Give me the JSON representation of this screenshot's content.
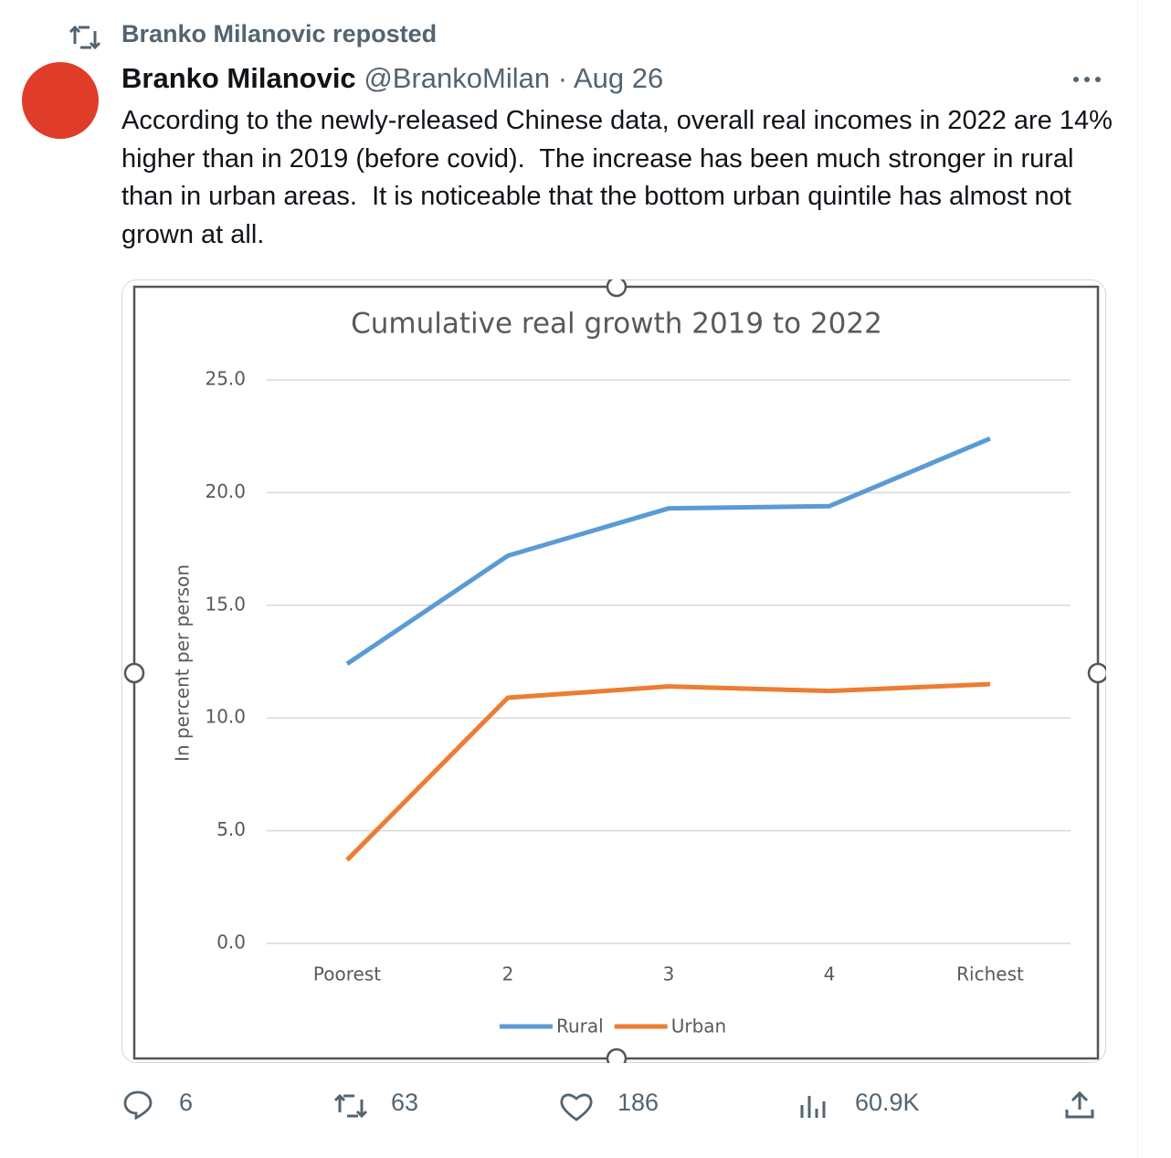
{
  "repost": "Branko Milanovic reposted",
  "author": {
    "name": "Branko Milanovic",
    "handle": "@BrankoMilan",
    "date": "Aug 26"
  },
  "text": "According to the newly-released Chinese data, overall real incomes in 2022 are 14% higher than in 2019 (before covid).  The increase has been much stronger in rural than in urban areas.  It is noticeable that the bottom urban quintile has almost not grown at all.",
  "chart_data": {
    "type": "line",
    "title": "Cumulative real growth 2019 to 2022",
    "y_label": "In percent per person",
    "categories": [
      "Poorest",
      "2",
      "3",
      "4",
      "Richest"
    ],
    "series": [
      {
        "name": "Rural",
        "color": "#5b9bd5",
        "values": [
          12.4,
          17.2,
          19.3,
          19.4,
          22.4
        ]
      },
      {
        "name": "Urban",
        "color": "#ed7d31",
        "values": [
          3.7,
          10.9,
          11.4,
          11.2,
          11.5
        ]
      }
    ],
    "ylim": [
      0,
      25
    ],
    "yticks": [
      {
        "value": 0,
        "label": "0.0"
      },
      {
        "value": 5,
        "label": "5.0"
      },
      {
        "value": 10,
        "label": "10.0"
      },
      {
        "value": 15,
        "label": "15.0"
      },
      {
        "value": 20,
        "label": "20.0"
      },
      {
        "value": 25,
        "label": "25.0"
      }
    ],
    "grid": true,
    "legend": "bottom"
  },
  "actions": {
    "replies": 6,
    "reposts": 63,
    "likes": 186,
    "views": "60.9K"
  }
}
